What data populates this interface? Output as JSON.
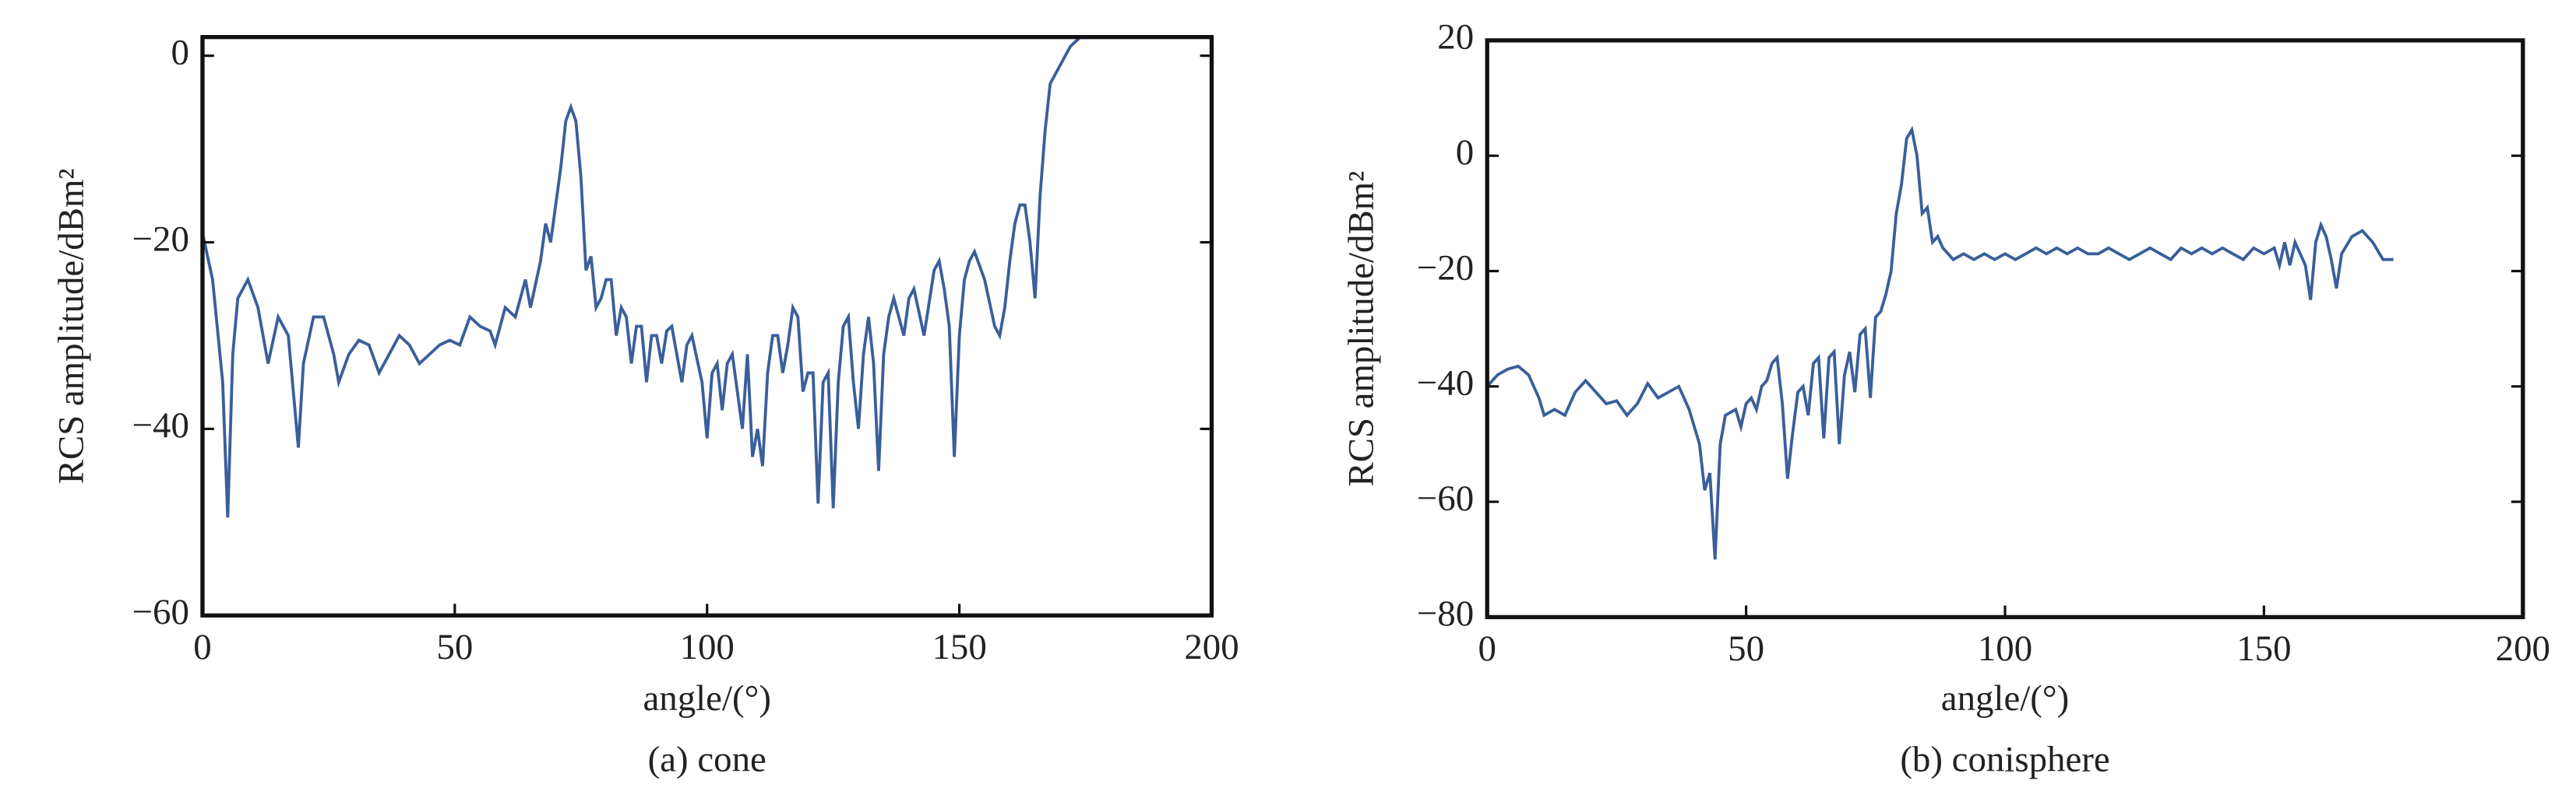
{
  "chart_data": [
    {
      "type": "line",
      "caption": "(a) cone",
      "xlabel": "angle/(°)",
      "ylabel": "RCS amplitude/dBm²",
      "color": "#3a5f9a",
      "xlim": [
        0,
        200
      ],
      "xticks": [
        0,
        50,
        100,
        150,
        200
      ],
      "ylim": [
        -60,
        2
      ],
      "yticks": [
        0,
        {
          "value": -20,
          "label": "−20"
        },
        {
          "value": -40,
          "label": "−40"
        },
        {
          "value": -60,
          "label": "−60"
        }
      ],
      "x": [
        0,
        2,
        4,
        5,
        6,
        7,
        9,
        11,
        13,
        15,
        17,
        19,
        20,
        22,
        24,
        26,
        27,
        29,
        31,
        33,
        35,
        37,
        39,
        41,
        43,
        45,
        47,
        49,
        51,
        53,
        55,
        57,
        58,
        60,
        62,
        64,
        65,
        67,
        68,
        69,
        71,
        72,
        73,
        74,
        75,
        76,
        77,
        78,
        79,
        80,
        81,
        82,
        83,
        84,
        85,
        86,
        87,
        88,
        89,
        90,
        91,
        92,
        93,
        95,
        96,
        97,
        99,
        100,
        101,
        102,
        103,
        104,
        105,
        106,
        107,
        108,
        109,
        110,
        111,
        112,
        113,
        114,
        115,
        116,
        117,
        118,
        119,
        120,
        121,
        122,
        123,
        124,
        125,
        126,
        127,
        128,
        129,
        130,
        131,
        132,
        133,
        134,
        135,
        136,
        137,
        139,
        140,
        141,
        143,
        145,
        146,
        147,
        148,
        149,
        150,
        151,
        152,
        153,
        155,
        157,
        158,
        159,
        160,
        161,
        162,
        163,
        164,
        165,
        166,
        167,
        168,
        170,
        172,
        174
      ],
      "values": [
        -19,
        -24,
        -35,
        -49.5,
        -32,
        -26,
        -24,
        -27,
        -33,
        -28,
        -30,
        -42,
        -33,
        -28,
        -28,
        -32,
        -35,
        -32,
        -30.5,
        -31,
        -34,
        -32,
        -30,
        -31,
        -33,
        -32,
        -31,
        -30.5,
        -31,
        -28,
        -29,
        -29.5,
        -31,
        -27,
        -28,
        -24,
        -27,
        -22,
        -18,
        -20,
        -12,
        -7,
        -5.5,
        -7,
        -13,
        -23,
        -21.5,
        -27,
        -26,
        -24,
        -24,
        -30,
        -27,
        -28,
        -33,
        -29,
        -29,
        -35,
        -30,
        -30,
        -33,
        -29.5,
        -29,
        -35,
        -31,
        -30,
        -35,
        -41,
        -34,
        -33,
        -38,
        -33,
        -32,
        -36,
        -40,
        -32,
        -43,
        -40,
        -44,
        -34,
        -30,
        -30,
        -34,
        -31,
        -27,
        -28,
        -36,
        -34,
        -34,
        -48,
        -35,
        -34,
        -48.5,
        -35,
        -29,
        -28,
        -35,
        -40,
        -32,
        -28,
        -33,
        -44.5,
        -32,
        -28,
        -26,
        -30,
        -26,
        -25,
        -30,
        -23,
        -22,
        -25,
        -29,
        -43,
        -30,
        -24,
        -22,
        -21,
        -24,
        -29,
        -30,
        -27,
        -22,
        -18,
        -16,
        -16,
        -20,
        -26,
        -15,
        -8,
        -3,
        -1,
        1,
        2
      ]
    },
    {
      "type": "line",
      "caption": "(b) conisphere",
      "xlabel": "angle/(°)",
      "ylabel": "RCS amplitude/dBm²",
      "color": "#3a5f9a",
      "xlim": [
        0,
        200
      ],
      "xticks": [
        0,
        50,
        100,
        150,
        200
      ],
      "ylim": [
        -80,
        20
      ],
      "yticks": [
        20,
        0,
        {
          "value": -20,
          "label": "−20"
        },
        {
          "value": -40,
          "label": "−40"
        },
        {
          "value": -60,
          "label": "−60"
        },
        {
          "value": -80,
          "label": "−80"
        }
      ],
      "x": [
        0,
        2,
        4,
        6,
        8,
        10,
        11,
        13,
        15,
        17,
        19,
        21,
        23,
        25,
        27,
        29,
        31,
        33,
        35,
        37,
        39,
        40,
        41,
        42,
        43,
        44,
        45,
        46,
        48,
        49,
        50,
        51,
        52,
        53,
        54,
        55,
        56,
        57,
        58,
        59,
        60,
        61,
        62,
        63,
        64,
        65,
        66,
        67,
        68,
        69,
        70,
        71,
        72,
        73,
        74,
        75,
        76,
        77,
        78,
        79,
        80,
        81,
        82,
        83,
        84,
        85,
        86,
        87,
        88,
        89,
        90,
        92,
        94,
        96,
        98,
        100,
        102,
        104,
        106,
        108,
        110,
        112,
        114,
        116,
        118,
        120,
        122,
        124,
        126,
        128,
        130,
        132,
        134,
        136,
        138,
        140,
        142,
        144,
        146,
        148,
        150,
        152,
        153,
        154,
        155,
        156,
        157,
        158,
        159,
        160,
        161,
        162,
        163,
        164,
        165,
        167,
        169,
        171,
        173,
        175
      ],
      "values": [
        -40,
        -38,
        -37,
        -36.5,
        -38,
        -42,
        -45,
        -44,
        -45,
        -41,
        -39,
        -41,
        -43,
        -42.5,
        -45,
        -43,
        -39.5,
        -42,
        -41,
        -40,
        -44,
        -47,
        -50,
        -58,
        -55,
        -70,
        -50,
        -45,
        -44,
        -47,
        -43,
        -42,
        -44,
        -40,
        -39,
        -36,
        -35,
        -43,
        -56,
        -48,
        -41,
        -40,
        -45,
        -36,
        -35,
        -49,
        -35,
        -34,
        -50,
        -38,
        -34,
        -41,
        -31,
        -30,
        -42,
        -28,
        -27,
        -24,
        -20,
        -10,
        -5,
        3,
        4.5,
        0,
        -10,
        -9,
        -15,
        -14,
        -16,
        -17,
        -18,
        -17,
        -18,
        -17,
        -18,
        -17,
        -18,
        -17,
        -16,
        -17,
        -16,
        -17,
        -16,
        -17,
        -17,
        -16,
        -17,
        -18,
        -17,
        -16,
        -17,
        -18,
        -16,
        -17,
        -16,
        -17,
        -16,
        -17,
        -18,
        -16,
        -17,
        -16,
        -19,
        -15,
        -19,
        -15,
        -17,
        -19,
        -25,
        -15,
        -12,
        -14,
        -18,
        -23,
        -17,
        -14,
        -13,
        -15,
        -18,
        -18
      ]
    }
  ]
}
